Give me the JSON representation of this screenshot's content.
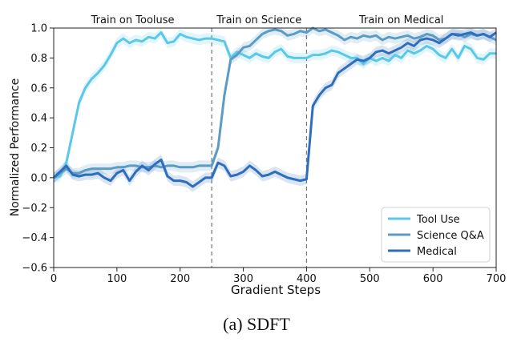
{
  "caption": "(a) SDFT",
  "chart_data": {
    "type": "line",
    "xlabel": "Gradient Steps",
    "ylabel": "Normalized Performance",
    "xlim": [
      0,
      700
    ],
    "ylim": [
      -0.6,
      1.0
    ],
    "xticks": [
      0,
      100,
      200,
      300,
      400,
      500,
      600,
      700
    ],
    "yticks": [
      -0.6,
      -0.4,
      -0.2,
      0.0,
      0.2,
      0.4,
      0.6,
      0.8,
      1.0
    ],
    "grid": false,
    "legend_position": "bottom-right",
    "phase_boundaries": [
      250,
      400
    ],
    "phases": [
      {
        "label": "Train on Tooluse",
        "center": 125
      },
      {
        "label": "Train on Science",
        "center": 325
      },
      {
        "label": "Train on Medical",
        "center": 550
      }
    ],
    "series": [
      {
        "name": "Tool Use",
        "color": "#5bc8e8",
        "x": [
          0,
          10,
          20,
          30,
          40,
          50,
          60,
          70,
          80,
          90,
          100,
          110,
          120,
          130,
          140,
          150,
          160,
          170,
          180,
          190,
          200,
          210,
          220,
          230,
          240,
          250,
          260,
          270,
          280,
          290,
          300,
          310,
          320,
          330,
          340,
          350,
          360,
          370,
          380,
          390,
          400,
          410,
          420,
          430,
          440,
          450,
          460,
          470,
          480,
          490,
          500,
          510,
          520,
          530,
          540,
          550,
          560,
          570,
          580,
          590,
          600,
          610,
          620,
          630,
          640,
          650,
          660,
          670,
          680,
          690,
          700
        ],
        "y": [
          0.0,
          0.01,
          0.1,
          0.3,
          0.5,
          0.6,
          0.66,
          0.7,
          0.75,
          0.82,
          0.9,
          0.93,
          0.9,
          0.92,
          0.91,
          0.94,
          0.93,
          0.97,
          0.9,
          0.91,
          0.96,
          0.94,
          0.93,
          0.92,
          0.93,
          0.93,
          0.92,
          0.91,
          0.8,
          0.84,
          0.82,
          0.8,
          0.83,
          0.81,
          0.8,
          0.84,
          0.86,
          0.81,
          0.8,
          0.8,
          0.8,
          0.82,
          0.82,
          0.83,
          0.85,
          0.84,
          0.82,
          0.8,
          0.8,
          0.76,
          0.8,
          0.78,
          0.8,
          0.78,
          0.82,
          0.8,
          0.85,
          0.83,
          0.85,
          0.88,
          0.86,
          0.82,
          0.8,
          0.86,
          0.8,
          0.88,
          0.86,
          0.8,
          0.79,
          0.83,
          0.83
        ]
      },
      {
        "name": "Science Q&A",
        "color": "#5b9bc4",
        "x": [
          0,
          10,
          20,
          30,
          40,
          50,
          60,
          70,
          80,
          90,
          100,
          110,
          120,
          130,
          140,
          150,
          160,
          170,
          180,
          190,
          200,
          210,
          220,
          230,
          240,
          250,
          260,
          270,
          280,
          290,
          300,
          310,
          320,
          330,
          340,
          350,
          360,
          370,
          380,
          390,
          400,
          410,
          420,
          430,
          440,
          450,
          460,
          470,
          480,
          490,
          500,
          510,
          520,
          530,
          540,
          550,
          560,
          570,
          580,
          590,
          600,
          610,
          620,
          630,
          640,
          650,
          660,
          670,
          680,
          690,
          700
        ],
        "y": [
          0.0,
          0.03,
          0.06,
          0.03,
          0.03,
          0.05,
          0.06,
          0.06,
          0.06,
          0.06,
          0.07,
          0.07,
          0.08,
          0.08,
          0.07,
          0.07,
          0.08,
          0.07,
          0.08,
          0.08,
          0.07,
          0.07,
          0.07,
          0.08,
          0.08,
          0.08,
          0.2,
          0.55,
          0.79,
          0.82,
          0.87,
          0.88,
          0.92,
          0.96,
          0.98,
          0.99,
          0.98,
          0.95,
          0.96,
          0.98,
          0.97,
          1.0,
          0.98,
          0.99,
          0.97,
          0.95,
          0.92,
          0.94,
          0.93,
          0.95,
          0.94,
          0.95,
          0.92,
          0.94,
          0.93,
          0.94,
          0.95,
          0.93,
          0.94,
          0.96,
          0.95,
          0.92,
          0.93,
          0.96,
          0.96,
          0.94,
          0.96,
          0.95,
          0.96,
          0.94,
          0.92
        ]
      },
      {
        "name": "Medical",
        "color": "#2f6dbd",
        "x": [
          0,
          10,
          20,
          30,
          40,
          50,
          60,
          70,
          80,
          90,
          100,
          110,
          120,
          130,
          140,
          150,
          160,
          170,
          180,
          190,
          200,
          210,
          220,
          230,
          240,
          250,
          260,
          270,
          280,
          290,
          300,
          310,
          320,
          330,
          340,
          350,
          360,
          370,
          380,
          390,
          400,
          410,
          420,
          430,
          440,
          450,
          460,
          470,
          480,
          490,
          500,
          510,
          520,
          530,
          540,
          550,
          560,
          570,
          580,
          590,
          600,
          610,
          620,
          630,
          640,
          650,
          660,
          670,
          680,
          690,
          700
        ],
        "y": [
          0.0,
          0.04,
          0.08,
          0.02,
          0.01,
          0.02,
          0.02,
          0.03,
          0.0,
          -0.02,
          0.03,
          0.05,
          -0.02,
          0.04,
          0.08,
          0.05,
          0.09,
          0.12,
          0.01,
          -0.02,
          -0.02,
          -0.03,
          -0.06,
          -0.03,
          0.0,
          0.0,
          0.1,
          0.08,
          0.01,
          0.02,
          0.04,
          0.08,
          0.05,
          0.01,
          0.02,
          0.04,
          0.02,
          0.0,
          -0.01,
          -0.02,
          -0.01,
          0.48,
          0.55,
          0.6,
          0.62,
          0.7,
          0.73,
          0.76,
          0.79,
          0.78,
          0.8,
          0.84,
          0.85,
          0.83,
          0.85,
          0.87,
          0.9,
          0.88,
          0.92,
          0.93,
          0.92,
          0.9,
          0.93,
          0.96,
          0.95,
          0.96,
          0.97,
          0.95,
          0.96,
          0.94,
          0.97
        ]
      }
    ]
  }
}
